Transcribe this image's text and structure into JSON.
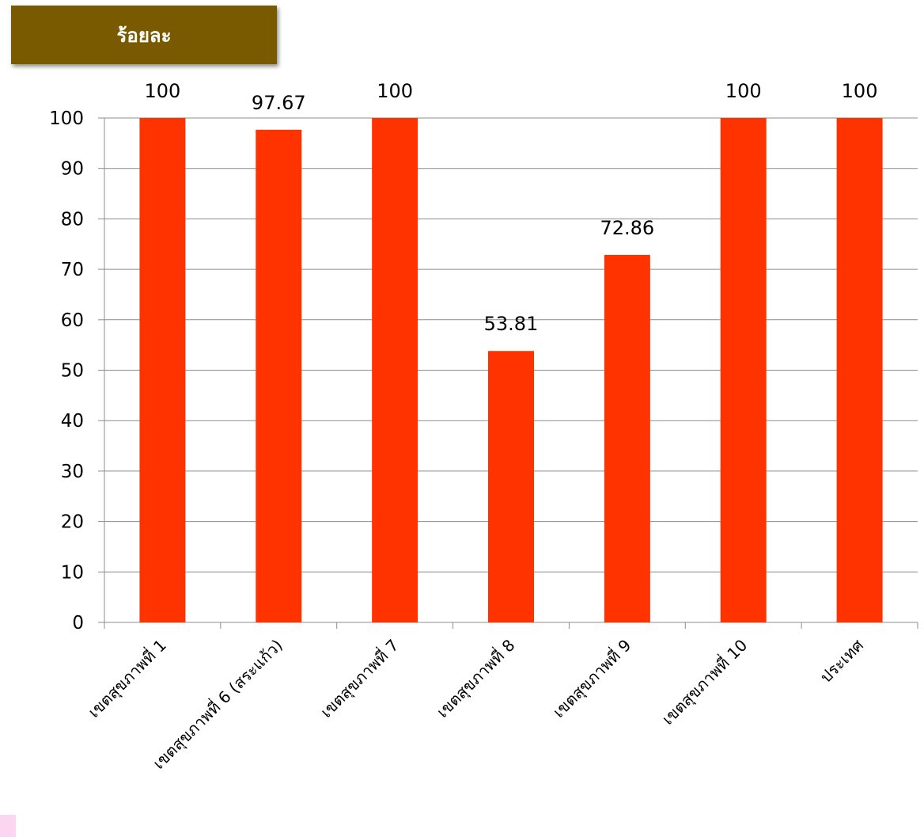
{
  "chart_data": {
    "type": "bar",
    "ylabel": "ร้อยละ",
    "categories": [
      "เขตสุขภาพที่ 1",
      "เขตสุขภาพที่ 6 (สระแก้ว)",
      "เขตสุขภาพที่ 7",
      "เขตสุขภาพที่ 8",
      "เขตสุขภาพที่ 9",
      "เขตสุขภาพที่ 10",
      "ประเทศ"
    ],
    "values": [
      100,
      97.67,
      100,
      53.81,
      72.86,
      100,
      100
    ],
    "data_labels": [
      "100",
      "97.67",
      "100",
      "53.81",
      "72.86",
      "100",
      "100"
    ],
    "ylim": [
      0,
      100
    ],
    "yticks": [
      "0",
      "10",
      "20",
      "30",
      "40",
      "50",
      "60",
      "70",
      "80",
      "90",
      "100"
    ],
    "grid": true,
    "bar_color": "#ff3300",
    "label_box_color": "#7a5a00"
  }
}
